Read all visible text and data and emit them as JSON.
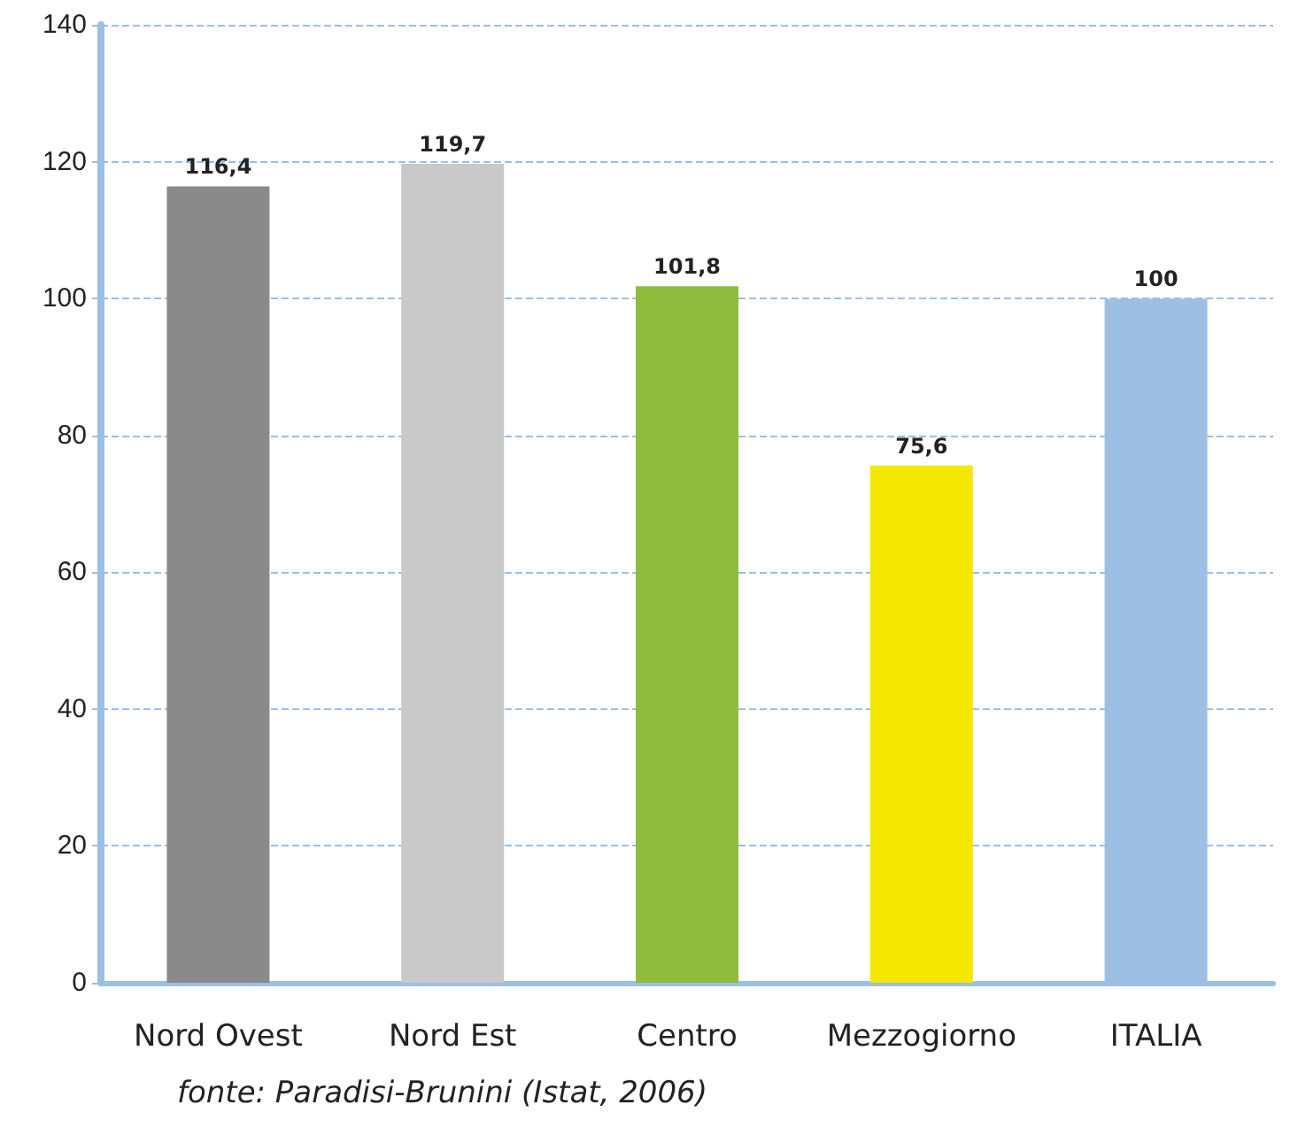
{
  "chart_data": {
    "type": "bar",
    "categories": [
      "Nord Ovest",
      "Nord Est",
      "Centro",
      "Mezzogiorno",
      "ITALIA"
    ],
    "values": [
      116.4,
      119.7,
      101.8,
      75.6,
      100
    ],
    "colors": [
      "#8a8a8a",
      "#c9c9c9",
      "#8fbb3e",
      "#f4e800",
      "#9dbfe4"
    ],
    "value_labels": [
      "116,4",
      "119,7",
      "101,8",
      "75,6",
      "100"
    ],
    "ylim": [
      0,
      140
    ],
    "yticks": [
      0,
      20,
      40,
      60,
      80,
      100,
      120,
      140
    ],
    "grid": "y",
    "annotations": [
      "fonte: Paradisi-Brunini (Istat, 2006)"
    ]
  }
}
